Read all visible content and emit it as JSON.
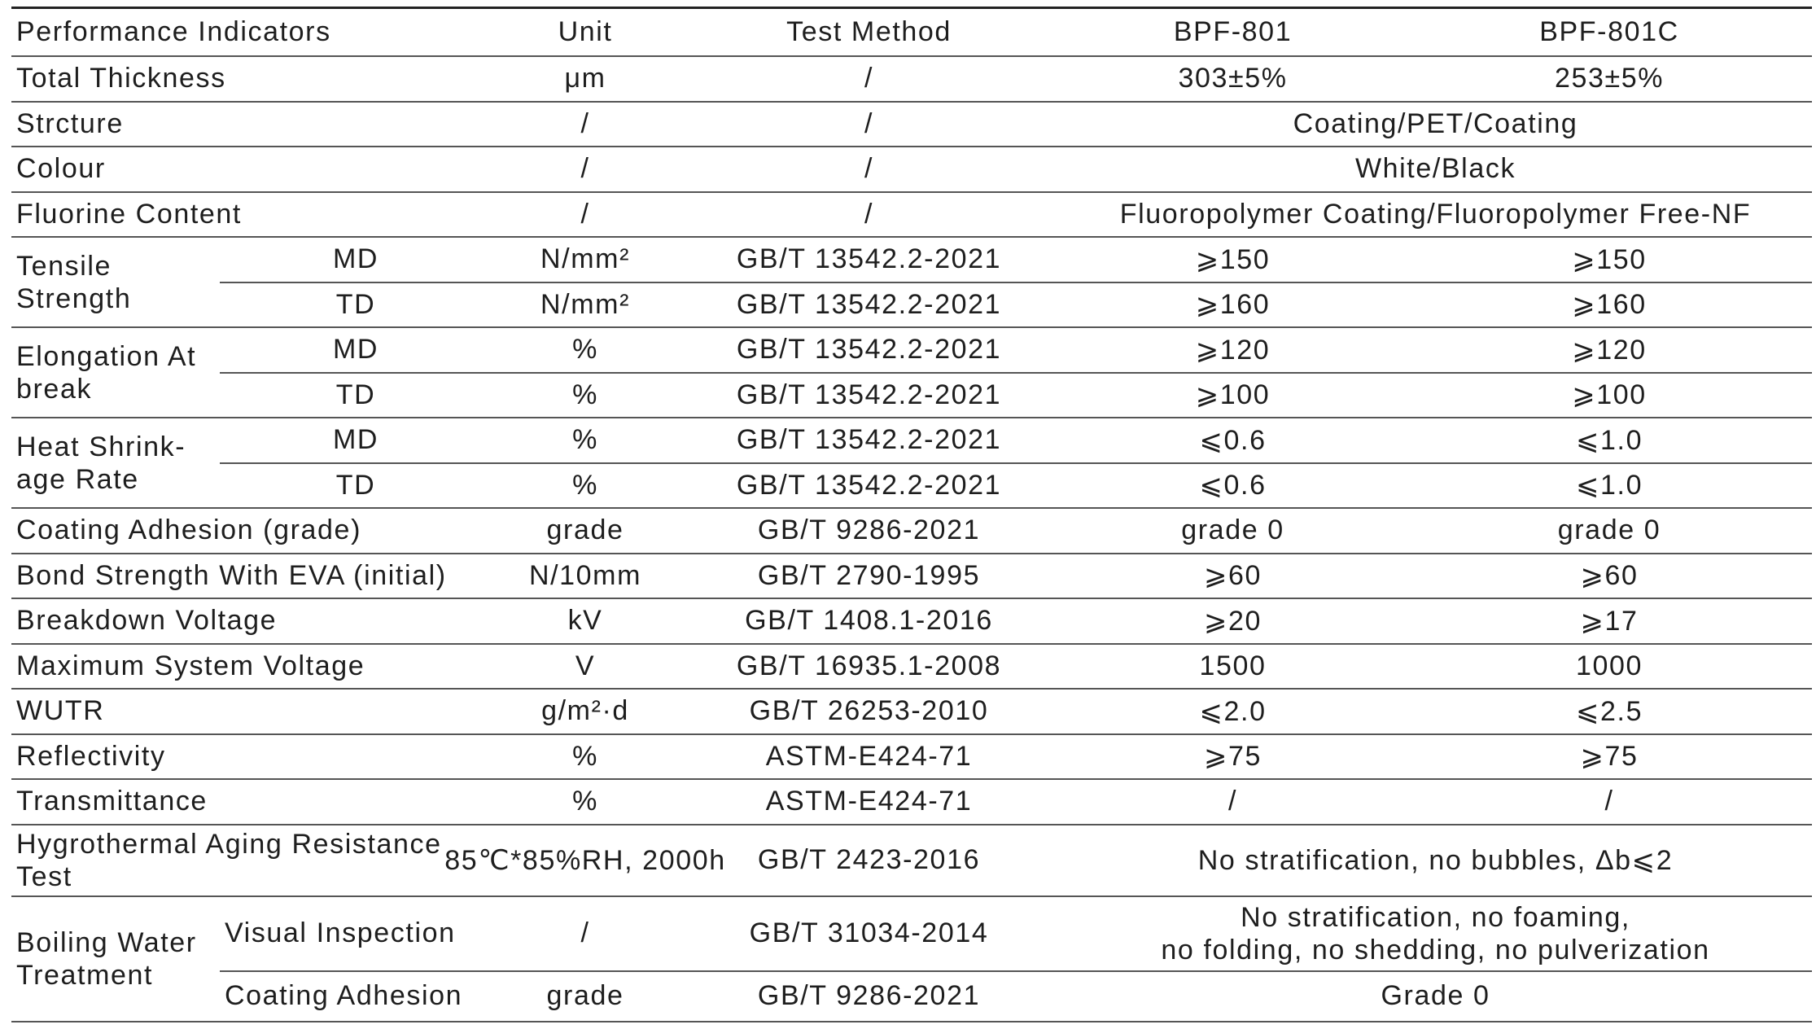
{
  "table": {
    "header": [
      "Performance Indicators",
      "Unit",
      "Test Method",
      "BPF-801",
      "BPF-801C"
    ],
    "rows": [
      [
        "Total Thickness",
        "μm",
        "/",
        "303±5%",
        "253±5%"
      ],
      [
        "Strcture",
        "/",
        "/",
        "Coating/PET/Coating"
      ],
      [
        "Colour",
        "/",
        "/",
        "White/Black"
      ],
      [
        "Fluorine Content",
        "/",
        "/",
        "Fluoropolymer Coating/Fluoropolymer Free-NF"
      ],
      [
        "Tensile Strength",
        "MD",
        "N/mm²",
        "GB/T 13542.2-2021",
        "⩾150",
        "⩾150"
      ],
      [
        "TD",
        "N/mm²",
        "GB/T 13542.2-2021",
        "⩾160",
        "⩾160"
      ],
      [
        "Elongation At break",
        "MD",
        "%",
        "GB/T 13542.2-2021",
        "⩾120",
        "⩾120"
      ],
      [
        "TD",
        "%",
        "GB/T 13542.2-2021",
        "⩾100",
        "⩾100"
      ],
      [
        "Heat Shrink-age Rate",
        "MD",
        "%",
        "GB/T 13542.2-2021",
        "⩽0.6",
        "⩽1.0"
      ],
      [
        "TD",
        "%",
        "GB/T 13542.2-2021",
        "⩽0.6",
        "⩽1.0"
      ],
      [
        "Coating Adhesion (grade)",
        "grade",
        "GB/T 9286-2021",
        "grade 0",
        "grade 0"
      ],
      [
        "Bond Strength With EVA (initial)",
        "N/10mm",
        "GB/T 2790-1995",
        "⩾60",
        "⩾60"
      ],
      [
        "Breakdown Voltage",
        "kV",
        "GB/T 1408.1-2016",
        "⩾20",
        "⩾17"
      ],
      [
        "Maximum System Voltage",
        "V",
        "GB/T 16935.1-2008",
        "1500",
        "1000"
      ],
      [
        "WUTR",
        "g/m²·d",
        "GB/T 26253-2010",
        "⩽2.0",
        "⩽2.5"
      ],
      [
        "Reflectivity",
        "%",
        "ASTM-E424-71",
        "⩾75",
        "⩾75"
      ],
      [
        "Transmittance",
        "%",
        "ASTM-E424-71",
        "/",
        "/"
      ],
      [
        "Hygrothermal Aging Resistance Test",
        "85℃*85%RH, 2000h",
        "GB/T 2423-2016",
        "No stratification, no bubbles, Δb⩽2"
      ],
      [
        "Boiling Water Treatment",
        "Visual Inspection",
        "/",
        "GB/T 31034-2014",
        [
          "No stratification, no foaming,",
          "no folding, no shedding, no pulverization"
        ]
      ],
      [
        "Coating Adhesion",
        "grade",
        "GB/T 9286-2021",
        "Grade 0"
      ]
    ]
  }
}
